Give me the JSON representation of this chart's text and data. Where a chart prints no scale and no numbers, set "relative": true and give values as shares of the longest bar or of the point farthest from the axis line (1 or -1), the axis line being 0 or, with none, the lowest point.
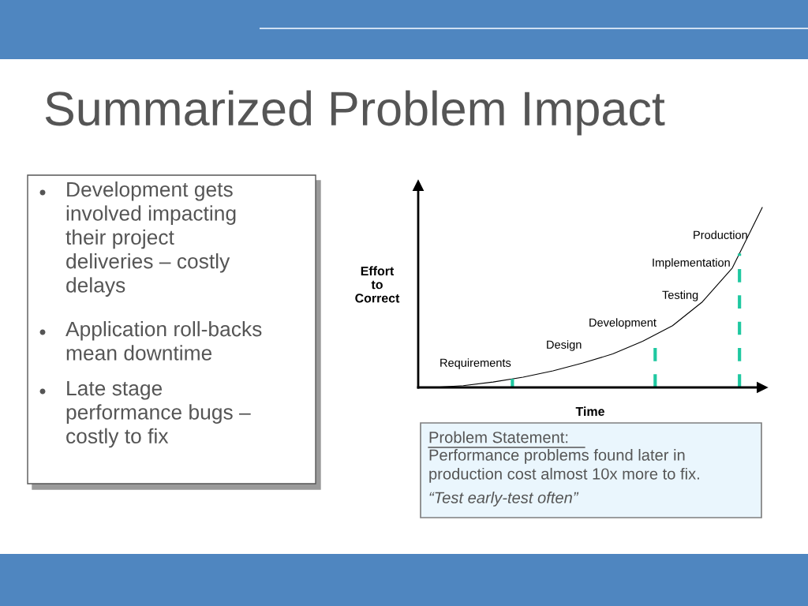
{
  "chart_data": [
    {
      "type": "other",
      "annotations": [
        "Development gets\ninvolved impacting\ntheir project\ndeliveries – costly\ndelays",
        "Application roll-backs\nmean downtime",
        "Late stage\nperformance bugs –\ncostly to fix"
      ]
    },
    {
      "type": "line",
      "title": "Summarized Problem Impact",
      "xlabel": "Time",
      "ylabel": "Effort\nto\nCorrect",
      "relative": true,
      "categories": [
        null,
        null,
        null,
        null,
        null,
        null,
        null,
        null,
        null,
        null,
        null,
        null
      ],
      "series": [
        {
          "color": "#000000",
          "values": [
            0,
            0.01,
            0.03,
            0.057,
            0.092,
            0.136,
            0.186,
            0.257,
            0.343,
            0.476,
            0.664,
            1.0
          ]
        }
      ],
      "annotations": [
        "Requirements",
        "Design",
        "Development",
        "Testing",
        "Implementation",
        "Production"
      ],
      "marker": "none",
      "line_style": "solid",
      "grid": false
    },
    {
      "type": "other",
      "title": "Problem Statement:",
      "annotations": [
        "Performance problems found later in\nproduction cost almost 10x more to fix.",
        "“Test early-test often”"
      ]
    }
  ]
}
